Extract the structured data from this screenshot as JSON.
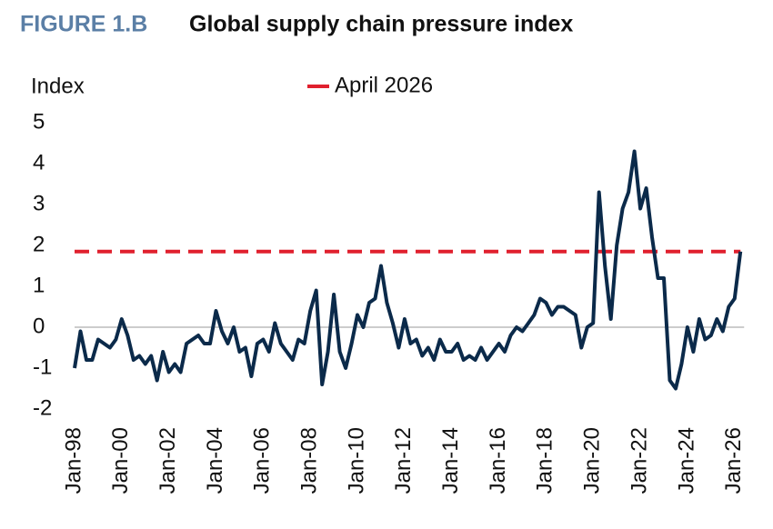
{
  "chart_data": {
    "type": "line",
    "figure_label": "FIGURE 1.B",
    "title": "Global supply chain pressure index",
    "y_label": "Index",
    "categories": [
      "Jan-98",
      null,
      null,
      null,
      null,
      null,
      null,
      null,
      "Jan-00",
      null,
      null,
      null,
      null,
      null,
      null,
      null,
      "Jan-02",
      null,
      null,
      null,
      null,
      null,
      null,
      null,
      "Jan-04",
      null,
      null,
      null,
      null,
      null,
      null,
      null,
      "Jan-06",
      null,
      null,
      null,
      null,
      null,
      null,
      null,
      "Jan-08",
      null,
      null,
      null,
      null,
      null,
      null,
      null,
      "Jan-10",
      null,
      null,
      null,
      null,
      null,
      null,
      null,
      "Jan-12",
      null,
      null,
      null,
      null,
      null,
      null,
      null,
      "Jan-14",
      null,
      null,
      null,
      null,
      null,
      null,
      null,
      "Jan-16",
      null,
      null,
      null,
      null,
      null,
      null,
      null,
      "Jan-18",
      null,
      null,
      null,
      null,
      null,
      null,
      null,
      "Jan-20",
      null,
      null,
      null,
      null,
      null,
      null,
      null,
      "Jan-22",
      null,
      null,
      null,
      null,
      null,
      null,
      null,
      "Jan-24",
      null,
      null,
      null,
      null,
      null,
      null,
      null,
      "Jan-26",
      null
    ],
    "series": [
      {
        "color": "#0b2a4a",
        "values": [
          -1.0,
          -0.1,
          -0.8,
          -0.8,
          -0.3,
          -0.4,
          -0.5,
          -0.3,
          0.2,
          -0.2,
          -0.8,
          -0.7,
          -0.9,
          -0.7,
          -1.3,
          -0.6,
          -1.1,
          -0.9,
          -1.1,
          -0.4,
          -0.3,
          -0.2,
          -0.4,
          -0.4,
          0.4,
          -0.1,
          -0.4,
          0.0,
          -0.6,
          -0.5,
          -1.2,
          -0.4,
          -0.3,
          -0.6,
          0.1,
          -0.4,
          -0.6,
          -0.8,
          -0.3,
          -0.4,
          0.4,
          0.9,
          -1.4,
          -0.6,
          0.8,
          -0.6,
          -1.0,
          -0.4,
          0.3,
          0.0,
          0.6,
          0.7,
          1.5,
          0.6,
          0.1,
          -0.5,
          0.2,
          -0.4,
          -0.3,
          -0.7,
          -0.5,
          -0.8,
          -0.3,
          -0.6,
          -0.6,
          -0.4,
          -0.8,
          -0.7,
          -0.8,
          -0.5,
          -0.8,
          -0.6,
          -0.4,
          -0.6,
          -0.2,
          0.0,
          -0.1,
          0.1,
          0.3,
          0.7,
          0.6,
          0.3,
          0.5,
          0.5,
          0.4,
          0.3,
          -0.5,
          0.0,
          0.1,
          3.3,
          1.5,
          0.2,
          2.0,
          2.9,
          3.3,
          4.3,
          2.9,
          3.4,
          2.2,
          1.2,
          1.2,
          -1.3,
          -1.5,
          -0.9,
          0.0,
          -0.6,
          0.2,
          -0.3,
          -0.2,
          0.2,
          -0.1,
          0.5,
          0.7,
          1.85
        ]
      }
    ],
    "reference_line": {
      "name": "April 2026",
      "value": 1.85,
      "color": "#e0202e"
    },
    "ylim": [
      -2,
      5
    ],
    "yticks": [
      -2,
      -1,
      0,
      1,
      2,
      3,
      4,
      5
    ]
  }
}
